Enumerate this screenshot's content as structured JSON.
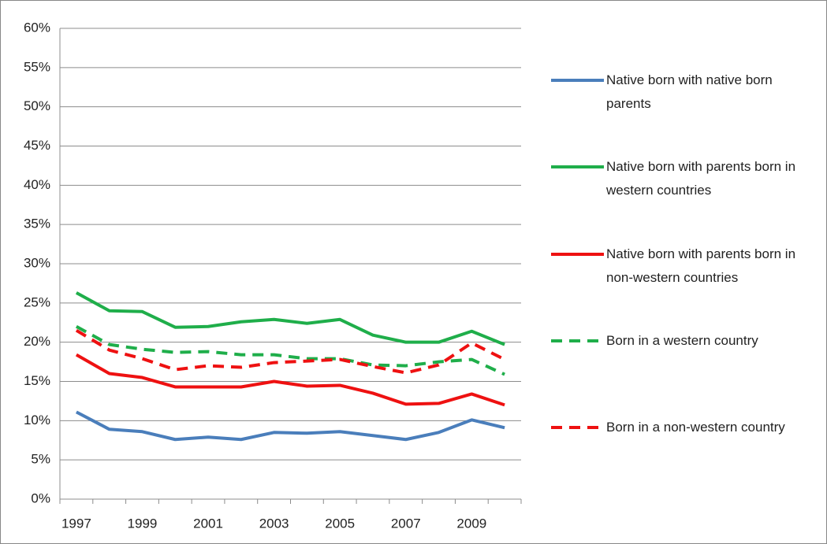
{
  "chart_data": {
    "type": "line",
    "categories": [
      "1997",
      null,
      "1999",
      null,
      "2001",
      null,
      "2003",
      null,
      "2005",
      null,
      "2007",
      null,
      "2009",
      null
    ],
    "series": [
      {
        "name": "Native born with native born parents",
        "color": "#4a7ebb",
        "dashed": false,
        "values": [
          11.1,
          8.9,
          8.6,
          7.6,
          7.9,
          7.6,
          8.5,
          8.4,
          8.6,
          8.1,
          7.6,
          8.5,
          10.1,
          9.1
        ]
      },
      {
        "name": "Native born with parents born in western countries",
        "color": "#1fae4a",
        "dashed": false,
        "values": [
          26.3,
          24.0,
          23.9,
          21.9,
          22.0,
          22.6,
          22.9,
          22.4,
          22.9,
          20.9,
          20.0,
          20.0,
          21.4,
          19.7
        ]
      },
      {
        "name": "Native born with parents born in non-western countries",
        "color": "#ee1111",
        "dashed": false,
        "values": [
          18.4,
          16.0,
          15.5,
          14.3,
          14.3,
          14.3,
          15.0,
          14.4,
          14.5,
          13.5,
          12.1,
          12.2,
          13.4,
          12.0
        ]
      },
      {
        "name": "Born in a western country",
        "color": "#1fae4a",
        "dashed": true,
        "values": [
          22.0,
          19.7,
          19.1,
          18.7,
          18.8,
          18.4,
          18.4,
          17.9,
          17.9,
          17.1,
          17.0,
          17.5,
          17.8,
          15.9
        ]
      },
      {
        "name": "Born in a non-western country",
        "color": "#ee1111",
        "dashed": true,
        "values": [
          21.5,
          19.0,
          17.9,
          16.5,
          17.0,
          16.8,
          17.4,
          17.6,
          17.8,
          16.9,
          16.1,
          17.1,
          19.9,
          17.8
        ]
      }
    ],
    "ylim": [
      0,
      60
    ],
    "yticks": [
      {
        "value": 0,
        "label": "0%"
      },
      {
        "value": 5,
        "label": "5%"
      },
      {
        "value": 10,
        "label": "10%"
      },
      {
        "value": 15,
        "label": "15%"
      },
      {
        "value": 20,
        "label": "20%"
      },
      {
        "value": 25,
        "label": "25%"
      },
      {
        "value": 30,
        "label": "30%"
      },
      {
        "value": 35,
        "label": "35%"
      },
      {
        "value": 40,
        "label": "40%"
      },
      {
        "value": 45,
        "label": "45%"
      },
      {
        "value": 50,
        "label": "50%"
      },
      {
        "value": 55,
        "label": "55%"
      },
      {
        "value": 60,
        "label": "60%"
      }
    ],
    "grid": true,
    "legend": "right"
  }
}
